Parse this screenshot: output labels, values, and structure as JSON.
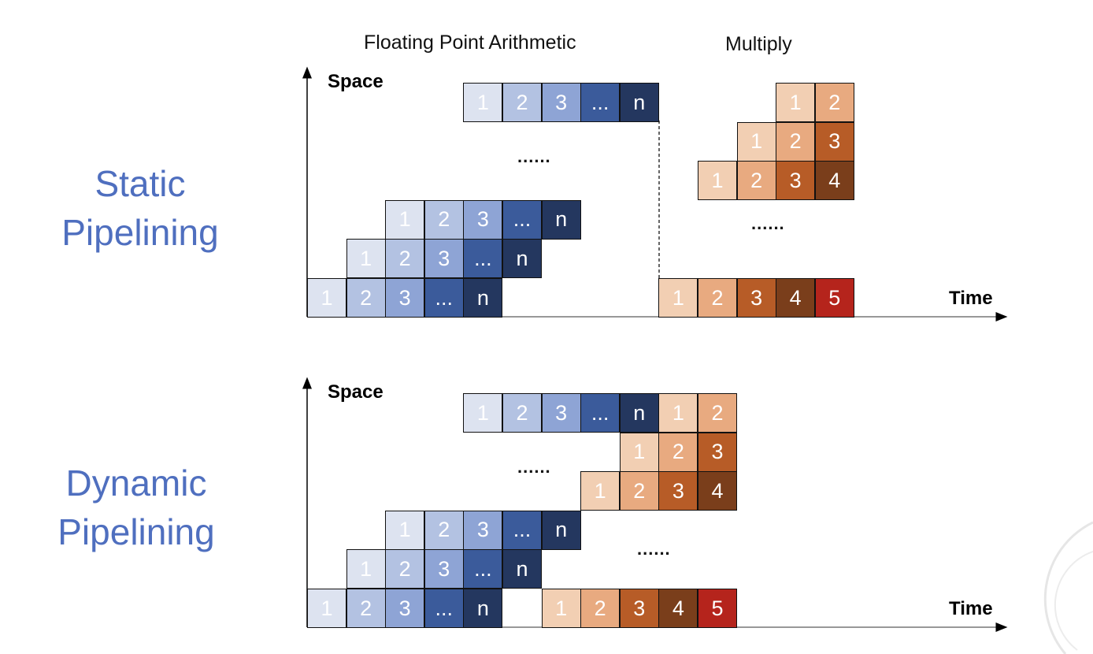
{
  "headers": {
    "fp": "Floating Point Arithmetic",
    "mul": "Multiply"
  },
  "axes": {
    "space": "Space",
    "time": "Time"
  },
  "colors": {
    "blue": {
      "1": "#dde3f0",
      "2": "#b3c2e2",
      "3": "#8ea4d5",
      "...": "#3b5b9b",
      "n": "#24375f"
    },
    "orange": {
      "1": "#f2cfb3",
      "2": "#e8aa80",
      "3": "#b75c27",
      "4": "#7a3e1b",
      "5": "#b5241c"
    },
    "label": "#4f6fbf"
  },
  "sections": [
    {
      "id": "static",
      "line1": "Static",
      "line2": "Pipelining",
      "rows": [
        {
          "s": 0,
          "t": 0,
          "set": "blue",
          "cells": [
            "1",
            "2",
            "3",
            "...",
            "n"
          ]
        },
        {
          "s": 1,
          "t": 1,
          "set": "blue",
          "cells": [
            "1",
            "2",
            "3",
            "...",
            "n"
          ]
        },
        {
          "s": 2,
          "t": 2,
          "set": "blue",
          "cells": [
            "1",
            "2",
            "3",
            "...",
            "n"
          ]
        },
        {
          "s": 5,
          "t": 4,
          "set": "blue",
          "cells": [
            "1",
            "2",
            "3",
            "...",
            "n"
          ]
        },
        {
          "s": 0,
          "t": 9,
          "set": "orange",
          "cells": [
            "1",
            "2",
            "3",
            "4",
            "5"
          ]
        },
        {
          "s": 3,
          "t": 10,
          "set": "orange",
          "cells": [
            "1",
            "2",
            "3",
            "4"
          ]
        },
        {
          "s": 4,
          "t": 11,
          "set": "orange",
          "cells": [
            "1",
            "2",
            "3"
          ]
        },
        {
          "s": 5,
          "t": 12,
          "set": "orange",
          "cells": [
            "1",
            "2"
          ]
        }
      ],
      "ellipses": [
        "......",
        "......"
      ]
    },
    {
      "id": "dynamic",
      "line1": "Dynamic",
      "line2": "Pipelining",
      "rows": [
        {
          "s": 0,
          "t": 0,
          "set": "blue",
          "cells": [
            "1",
            "2",
            "3",
            "...",
            "n"
          ]
        },
        {
          "s": 1,
          "t": 1,
          "set": "blue",
          "cells": [
            "1",
            "2",
            "3",
            "...",
            "n"
          ]
        },
        {
          "s": 2,
          "t": 2,
          "set": "blue",
          "cells": [
            "1",
            "2",
            "3",
            "...",
            "n"
          ]
        },
        {
          "s": 5,
          "t": 4,
          "set": "blue",
          "cells": [
            "1",
            "2",
            "3",
            "...",
            "n"
          ]
        },
        {
          "s": 0,
          "t": 6,
          "set": "orange",
          "cells": [
            "1",
            "2",
            "3",
            "4",
            "5"
          ]
        },
        {
          "s": 3,
          "t": 7,
          "set": "orange",
          "cells": [
            "1",
            "2",
            "3",
            "4"
          ]
        },
        {
          "s": 4,
          "t": 8,
          "set": "orange",
          "cells": [
            "1",
            "2",
            "3"
          ]
        },
        {
          "s": 5,
          "t": 9,
          "set": "orange",
          "cells": [
            "1",
            "2"
          ]
        }
      ],
      "ellipses": [
        "......",
        "......"
      ]
    }
  ]
}
